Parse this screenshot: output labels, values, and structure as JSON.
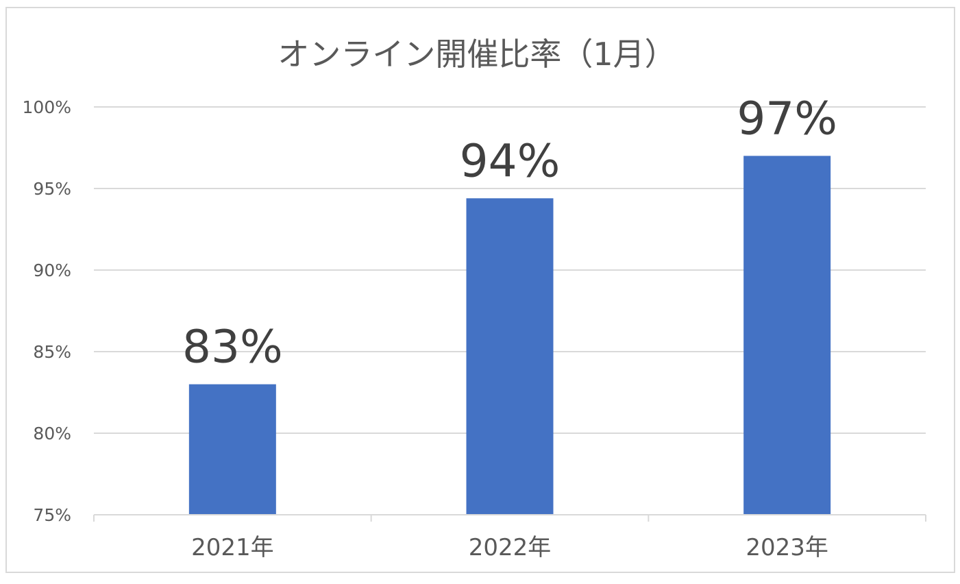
{
  "chart_data": {
    "type": "bar",
    "title": "オンライン開催比率（1月）",
    "categories": [
      "2021年",
      "2022年",
      "2023年"
    ],
    "values": [
      83,
      94.4,
      97
    ],
    "data_labels": [
      "83%",
      "94%",
      "97%"
    ],
    "ylim": [
      75,
      100
    ],
    "yticks": [
      75,
      80,
      85,
      90,
      95,
      100
    ],
    "ytick_labels": [
      "75%",
      "80%",
      "85%",
      "90%",
      "95%",
      "100%"
    ],
    "grid": true,
    "legend": "none",
    "bar_color": "#4472c4",
    "grid_color": "#d9d9d9"
  }
}
